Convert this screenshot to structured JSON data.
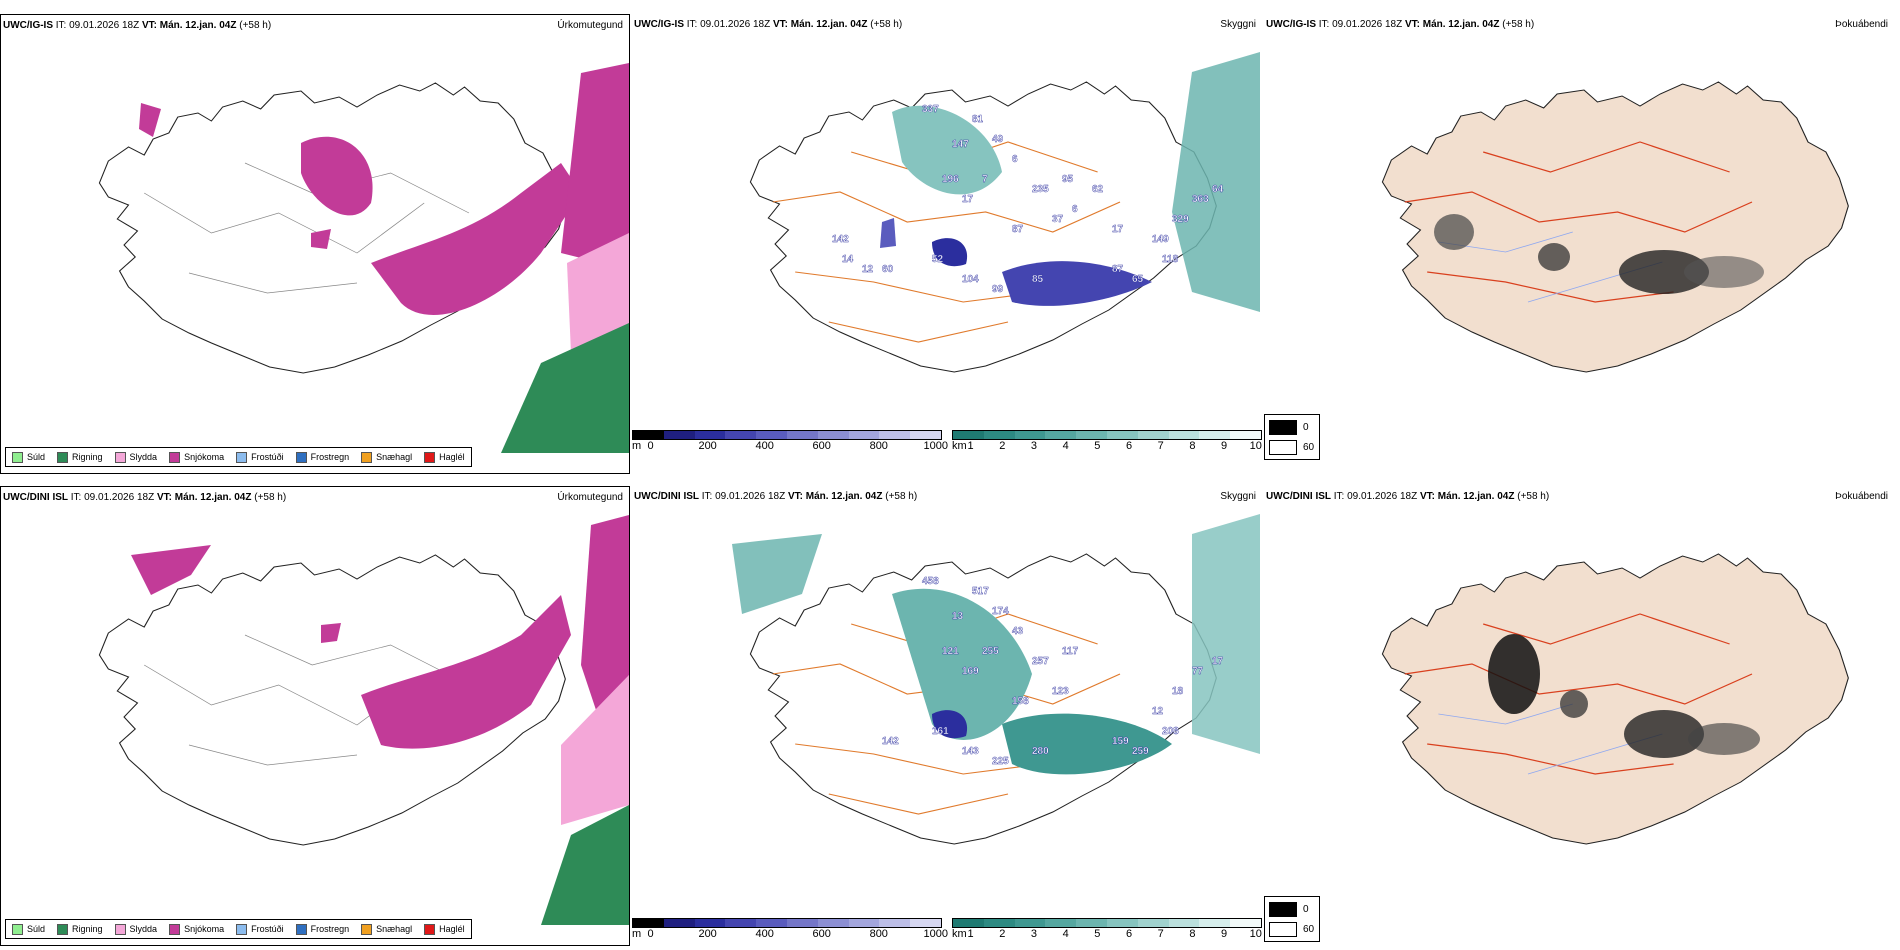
{
  "colors": {
    "suld": "#90ee90",
    "rigning": "#2e8b57",
    "slydda": "#f4a7d8",
    "snjokoma": "#c23b98",
    "frostudi": "#8cbcee",
    "frostregn": "#2f6fc0",
    "snaehagl": "#f0a020",
    "haglel": "#e01818",
    "land_fog": "#f2dfcf",
    "roads": "#e07a2c",
    "roads_red": "#d9401e",
    "rivers": "#8fa8f0",
    "ceiling": "#2b2e9e",
    "visibility": "#3a9a90"
  },
  "rows": [
    {
      "model": "UWC/IG-IS",
      "it": "IT: 09.01.2026 18Z",
      "vt": "VT: Mán. 12.jan. 04Z",
      "lead": "(+58 h)",
      "panels": {
        "precip": {
          "title": "Úrkomutegund"
        },
        "ceiling": {
          "title": "Skyggni",
          "labels": [
            "337",
            "81",
            "147",
            "49",
            "6",
            "7",
            "196",
            "17",
            "235",
            "95",
            "37",
            "87",
            "52",
            "60",
            "104",
            "99",
            "85",
            "87",
            "65",
            "118",
            "149",
            "329",
            "363",
            "64",
            "142",
            "14",
            "17",
            "62",
            "6",
            "12"
          ]
        },
        "fog": {
          "title": "Þokuábendi"
        }
      }
    },
    {
      "model": "UWC/DINI ISL",
      "it": "IT: 09.01.2026 18Z",
      "vt": "VT: Mán. 12.jan. 04Z",
      "lead": "(+58 h)",
      "panels": {
        "precip": {
          "title": "Úrkomutegund"
        },
        "ceiling": {
          "title": "Skyggni",
          "labels": [
            "458",
            "517",
            "13",
            "174",
            "43",
            "255",
            "121",
            "169",
            "257",
            "117",
            "123",
            "158",
            "161",
            "142",
            "143",
            "225",
            "280",
            "159",
            "259",
            "208",
            "12",
            "18",
            "77",
            "17"
          ]
        },
        "fog": {
          "title": "Þokuábendi"
        }
      }
    }
  ],
  "precip_legend": [
    {
      "label": "Súld",
      "color": "#90ee90"
    },
    {
      "label": "Rigning",
      "color": "#2e8b57"
    },
    {
      "label": "Slydda",
      "color": "#f4a7d8"
    },
    {
      "label": "Snjókoma",
      "color": "#c23b98"
    },
    {
      "label": "Frostúði",
      "color": "#8cbcee"
    },
    {
      "label": "Frostregn",
      "color": "#2f6fc0"
    },
    {
      "label": "Snæhagl",
      "color": "#f0a020"
    },
    {
      "label": "Haglél",
      "color": "#e01818"
    }
  ],
  "ceiling_scale": {
    "unit": "m",
    "ticks": [
      "0",
      "200",
      "400",
      "600",
      "800",
      "1000"
    ],
    "colors": [
      "#000000",
      "#1f1f80",
      "#2b2e9e",
      "#4445b0",
      "#5a5cbe",
      "#7476c8",
      "#8c8fd3",
      "#a3a6dd",
      "#bcbee7",
      "#d6d7f1"
    ]
  },
  "vis_scale": {
    "unit": "km",
    "ticks": [
      "1",
      "2",
      "3",
      "4",
      "5",
      "6",
      "7",
      "8",
      "9",
      "10"
    ],
    "colors": [
      "#1f7a72",
      "#2d8a82",
      "#3f9891",
      "#55a7a0",
      "#6cb5af",
      "#86c4bf",
      "#a0d2ce",
      "#bbe0dd",
      "#d6eeec",
      "#f2faf9"
    ]
  },
  "fog_legend": {
    "dark": "0",
    "light": "60"
  }
}
